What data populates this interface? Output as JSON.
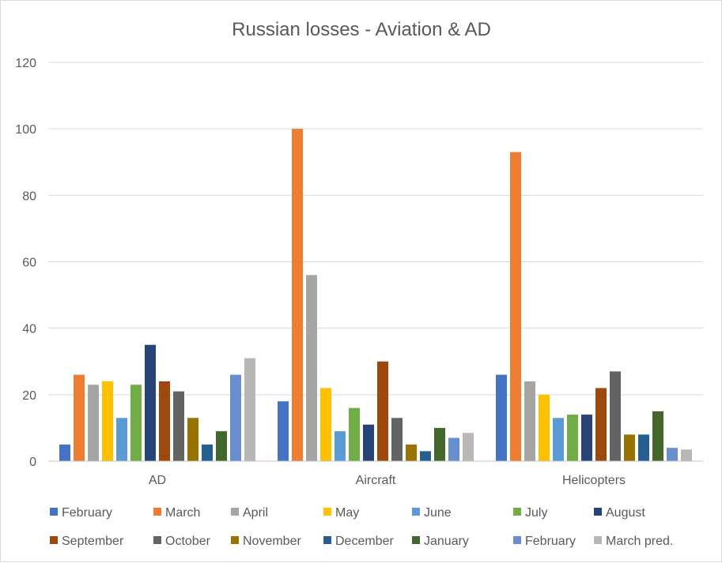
{
  "chart_data": {
    "type": "bar",
    "title": "Russian losses - Aviation & AD",
    "xlabel": "",
    "ylabel": "",
    "ylim": [
      0,
      120
    ],
    "yticks": [
      0,
      20,
      40,
      60,
      80,
      100,
      120
    ],
    "grid": true,
    "legend_position": "bottom",
    "categories": [
      "AD",
      "Aircraft",
      "Helicopters"
    ],
    "series": [
      {
        "name": "February",
        "color": "#4472C4",
        "values": [
          5,
          18,
          26
        ]
      },
      {
        "name": "March",
        "color": "#ED7D31",
        "values": [
          26,
          100,
          93
        ]
      },
      {
        "name": "April",
        "color": "#A5A5A5",
        "values": [
          23,
          56,
          24
        ]
      },
      {
        "name": "May",
        "color": "#FFC000",
        "values": [
          24,
          22,
          20
        ]
      },
      {
        "name": "June",
        "color": "#5B9BD5",
        "values": [
          13,
          9,
          13
        ]
      },
      {
        "name": "July",
        "color": "#70AD47",
        "values": [
          23,
          16,
          14
        ]
      },
      {
        "name": "August",
        "color": "#264478",
        "values": [
          35,
          11,
          14
        ]
      },
      {
        "name": "September",
        "color": "#9E480E",
        "values": [
          24,
          30,
          22
        ]
      },
      {
        "name": "October",
        "color": "#636363",
        "values": [
          21,
          13,
          27
        ]
      },
      {
        "name": "November",
        "color": "#997300",
        "values": [
          13,
          5,
          8
        ]
      },
      {
        "name": "December",
        "color": "#255E91",
        "values": [
          5,
          3,
          8
        ]
      },
      {
        "name": "January",
        "color": "#43682B",
        "values": [
          9,
          10,
          15
        ]
      },
      {
        "name": "February",
        "color": "#698ED0",
        "values": [
          26,
          7,
          4
        ]
      },
      {
        "name": "March pred.",
        "color": "#B7B7B7",
        "values": [
          31,
          8.5,
          3.5
        ]
      }
    ]
  }
}
